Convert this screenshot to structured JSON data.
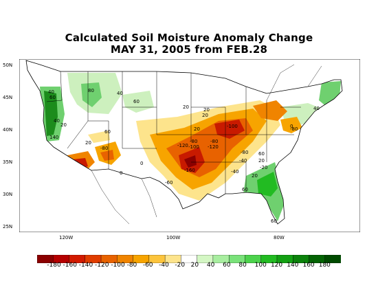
{
  "title": {
    "line1": "Calculated Soil Moisture Anomaly Change",
    "line2": "MAY 31, 2005 from FEB.28"
  },
  "axes": {
    "lat_labels": [
      "50N",
      "45N",
      "40N",
      "35N",
      "30N",
      "25N"
    ],
    "lon_labels": [
      "120W",
      "100W",
      "80W"
    ]
  },
  "legend": {
    "labels": [
      "-180",
      "-160",
      "-140",
      "-120",
      "-100",
      "-80",
      "-60",
      "-40",
      "-20",
      "20",
      "40",
      "60",
      "80",
      "100",
      "120",
      "140",
      "160",
      "180"
    ],
    "colors": [
      "#8b0000",
      "#b50000",
      "#d21a00",
      "#e03c00",
      "#e86200",
      "#f08400",
      "#f7a400",
      "#fcc43c",
      "#fde48c",
      "#ffffff",
      "#d4f7c4",
      "#a8eea0",
      "#7ae27a",
      "#4cd24c",
      "#22bb22",
      "#13a013",
      "#0b820b",
      "#046304",
      "#004a00"
    ]
  },
  "contour_labels": [
    "40",
    "80",
    "40",
    "60",
    "20",
    "140",
    "40",
    "20",
    "60",
    "-80",
    "20",
    "20",
    "20",
    "20",
    "60",
    "0",
    "0",
    "-60",
    "-120",
    "-100",
    "-80",
    "-120",
    "-80",
    "-160",
    "-100",
    "-80",
    "-40",
    "20",
    "-20",
    "20",
    "60",
    "-40",
    "60",
    "40",
    "-80",
    "60",
    "0"
  ],
  "colors": {
    "green_dark": "#1c8c1c",
    "green_mid": "#6fd06f",
    "green_light": "#cdf0be",
    "red_dark": "#c81a00",
    "orange": "#f08400",
    "yellow": "#fde48c"
  }
}
